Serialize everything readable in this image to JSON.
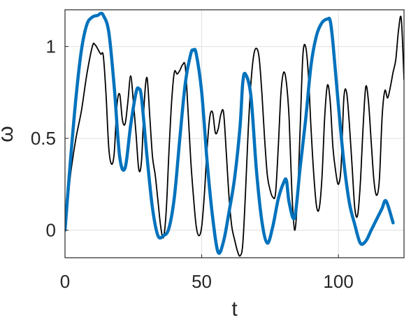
{
  "chart_data": {
    "type": "line",
    "title": "",
    "xlabel": "t",
    "ylabel": "ω",
    "xlim": [
      0,
      124
    ],
    "ylim": [
      -0.15,
      1.2
    ],
    "xticks": [
      0,
      50,
      100
    ],
    "xtick_labels": [
      "0",
      "50",
      "100"
    ],
    "yticks": [
      0,
      0.5,
      1
    ],
    "ytick_labels": [
      "0",
      "0.5",
      "1"
    ],
    "grid": true,
    "legend": "none",
    "series": [
      {
        "color": "#000000",
        "style": "thin",
        "x": [
          0,
          2,
          4,
          6,
          8,
          10,
          11,
          13,
          14,
          15,
          16,
          17,
          18,
          19,
          20,
          21,
          22,
          23,
          24,
          25,
          26,
          27,
          28,
          29,
          30,
          31,
          32,
          33,
          34,
          35,
          36,
          37,
          38,
          39,
          40,
          41,
          42,
          43,
          44,
          45,
          46,
          47,
          48,
          49,
          50,
          51,
          52,
          53,
          54,
          55,
          56,
          57,
          58,
          59,
          60,
          61,
          62,
          63,
          64,
          65,
          66,
          67,
          68,
          69,
          70,
          71,
          72,
          73,
          74,
          75,
          76,
          77,
          78,
          79,
          80,
          81,
          82,
          83,
          84,
          85,
          86,
          87,
          88,
          89,
          90,
          91,
          92,
          93,
          94,
          95,
          96,
          97,
          98,
          99,
          100,
          101,
          102,
          103,
          104,
          105,
          106,
          107,
          108,
          109,
          110,
          111,
          112,
          113,
          114,
          115,
          116,
          117,
          118,
          119,
          120,
          121,
          122,
          123,
          124
        ],
        "y": [
          0.0,
          0.3,
          0.5,
          0.65,
          0.85,
          1.0,
          1.01,
          0.96,
          0.95,
          0.74,
          0.45,
          0.36,
          0.42,
          0.68,
          0.74,
          0.6,
          0.58,
          0.7,
          0.84,
          0.7,
          0.52,
          0.33,
          0.38,
          0.7,
          0.83,
          0.62,
          0.4,
          0.3,
          0.16,
          0.02,
          -0.04,
          0.1,
          0.42,
          0.7,
          0.86,
          0.85,
          0.87,
          0.9,
          0.89,
          0.65,
          0.38,
          0.18,
          0.02,
          -0.03,
          0.02,
          0.2,
          0.45,
          0.62,
          0.64,
          0.53,
          0.55,
          0.63,
          0.64,
          0.42,
          0.18,
          0.02,
          -0.05,
          -0.11,
          -0.14,
          -0.08,
          0.2,
          0.54,
          0.8,
          0.95,
          0.99,
          0.94,
          0.75,
          0.5,
          0.3,
          0.22,
          0.18,
          0.2,
          0.45,
          0.75,
          0.86,
          0.8,
          0.6,
          0.2,
          0.0,
          0.17,
          0.55,
          0.95,
          1.0,
          0.85,
          0.55,
          0.3,
          0.13,
          0.12,
          0.29,
          0.62,
          0.79,
          0.7,
          0.45,
          0.32,
          0.25,
          0.35,
          0.72,
          0.75,
          0.58,
          0.35,
          0.12,
          0.08,
          0.25,
          0.55,
          0.78,
          0.7,
          0.48,
          0.27,
          0.19,
          0.28,
          0.62,
          0.76,
          0.72,
          0.78,
          0.86,
          0.93,
          1.09,
          1.15,
          0.82
        ]
      },
      {
        "color": "#0072bd",
        "style": "thick",
        "x": [
          0,
          2,
          4,
          6,
          8,
          10,
          12,
          13,
          14,
          16,
          18,
          20,
          22,
          24,
          26,
          27,
          28,
          30,
          32,
          34,
          36,
          38,
          40,
          42,
          44,
          46,
          47,
          48,
          50,
          52,
          54,
          56,
          58,
          60,
          62,
          64,
          65,
          66,
          68,
          70,
          72,
          74,
          76,
          78,
          80,
          81,
          82,
          84,
          86,
          88,
          90,
          92,
          94,
          96,
          97,
          98,
          100,
          102,
          104,
          106,
          108,
          110,
          112,
          114,
          116,
          117,
          118,
          120
        ],
        "y": [
          0.0,
          0.38,
          0.72,
          0.98,
          1.12,
          1.16,
          1.17,
          1.18,
          1.17,
          1.08,
          0.78,
          0.4,
          0.34,
          0.57,
          0.75,
          0.77,
          0.72,
          0.4,
          0.12,
          -0.03,
          -0.03,
          0.01,
          0.18,
          0.5,
          0.8,
          0.96,
          0.98,
          0.96,
          0.75,
          0.37,
          0.07,
          -0.12,
          -0.06,
          0.1,
          0.28,
          0.56,
          0.8,
          0.85,
          0.73,
          0.33,
          0.05,
          -0.07,
          0.02,
          0.17,
          0.26,
          0.27,
          0.15,
          0.07,
          0.34,
          0.6,
          0.9,
          1.06,
          1.13,
          1.15,
          1.14,
          1.02,
          0.68,
          0.37,
          0.15,
          0.03,
          -0.07,
          -0.06,
          0.0,
          0.06,
          0.12,
          0.16,
          0.14,
          0.04
        ]
      }
    ]
  }
}
